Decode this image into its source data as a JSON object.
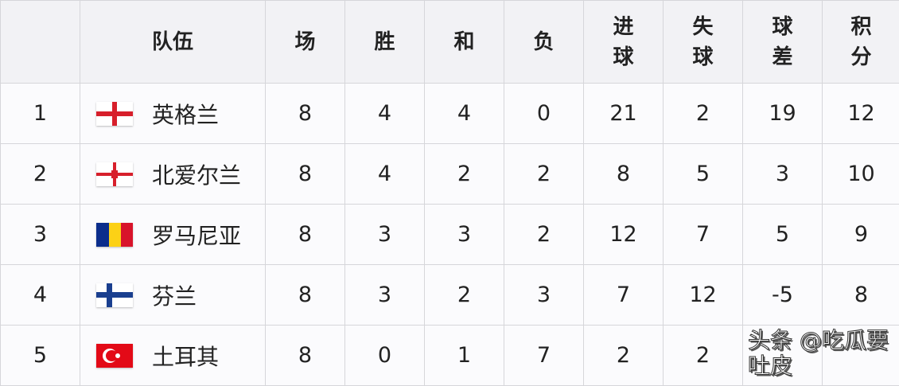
{
  "headers": [
    "",
    "队伍",
    "场",
    "胜",
    "和",
    "负",
    "进\n球",
    "失\n球",
    "球\n差",
    "积\n分"
  ],
  "rows": [
    {
      "rank": "1",
      "team": "英格兰",
      "flag": "england-flag",
      "played": "8",
      "won": "4",
      "drawn": "4",
      "lost": "0",
      "gf": "21",
      "ga": "2",
      "gd": "19",
      "pts": "12"
    },
    {
      "rank": "2",
      "team": "北爱尔兰",
      "flag": "northern-ireland-flag",
      "played": "8",
      "won": "4",
      "drawn": "2",
      "lost": "2",
      "gf": "8",
      "ga": "5",
      "gd": "3",
      "pts": "10"
    },
    {
      "rank": "3",
      "team": "罗马尼亚",
      "flag": "romania-flag",
      "played": "8",
      "won": "3",
      "drawn": "3",
      "lost": "2",
      "gf": "12",
      "ga": "7",
      "gd": "5",
      "pts": "9"
    },
    {
      "rank": "4",
      "team": "芬兰",
      "flag": "finland-flag",
      "played": "8",
      "won": "3",
      "drawn": "2",
      "lost": "3",
      "gf": "7",
      "ga": "12",
      "gd": "-5",
      "pts": "8"
    },
    {
      "rank": "5",
      "team": "土耳其",
      "flag": "turkey-flag",
      "played": "8",
      "won": "0",
      "drawn": "1",
      "lost": "7",
      "gf": "2",
      "ga": "2",
      "gd": "",
      "pts": ""
    }
  ],
  "watermark": "头条 @吃瓜要吐皮"
}
